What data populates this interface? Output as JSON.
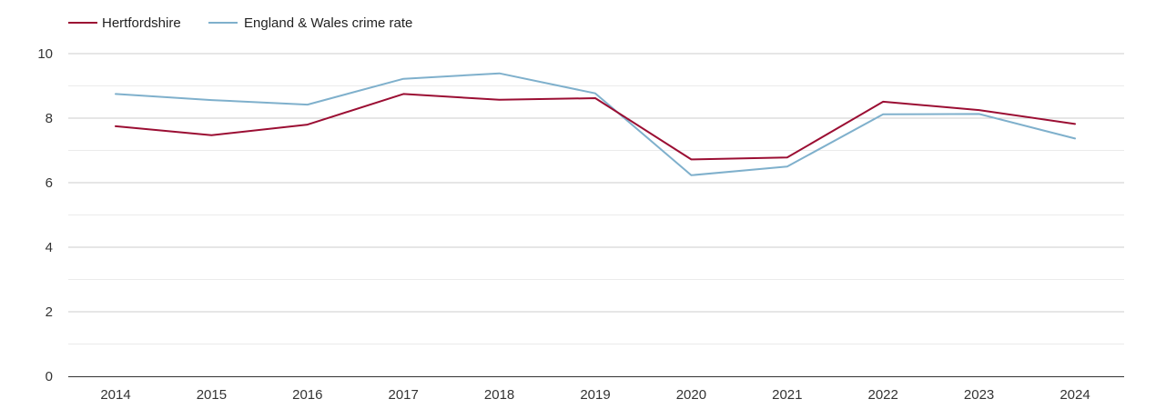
{
  "chart_data": {
    "type": "line",
    "title": "",
    "xlabel": "",
    "ylabel": "",
    "x": [
      "2014",
      "2015",
      "2016",
      "2017",
      "2018",
      "2019",
      "2020",
      "2021",
      "2022",
      "2023",
      "2024"
    ],
    "ylim": [
      0,
      10
    ],
    "yticks": [
      0,
      2,
      4,
      6,
      8,
      10
    ],
    "grid": true,
    "legend_position": "top-left",
    "series": [
      {
        "name": "Hertfordshire",
        "color": "#9b0e33",
        "values": [
          7.75,
          7.47,
          7.8,
          8.75,
          8.57,
          8.62,
          6.72,
          6.78,
          8.51,
          8.25,
          7.82
        ]
      },
      {
        "name": "England & Wales crime rate",
        "color": "#7fb0cc",
        "values": [
          8.75,
          8.56,
          8.42,
          9.22,
          9.39,
          8.77,
          6.23,
          6.5,
          8.12,
          8.13,
          7.37
        ]
      }
    ]
  }
}
